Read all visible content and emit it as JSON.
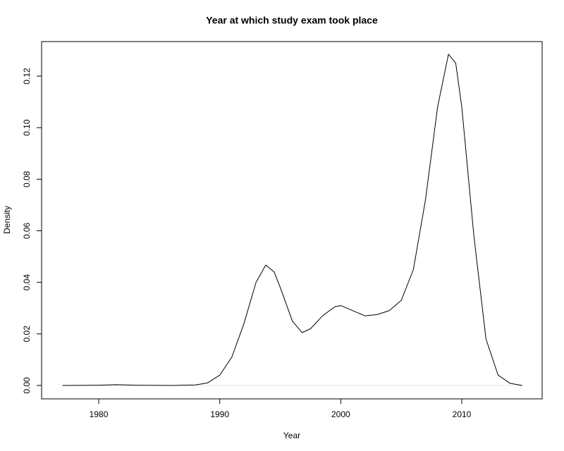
{
  "chart_data": {
    "type": "line",
    "title": "Year at which study exam took place",
    "x_label": "Year",
    "y_label": "Density",
    "x": [
      1977,
      1980,
      1981.5,
      1983,
      1986,
      1988,
      1989,
      1990,
      1991,
      1992,
      1993,
      1993.8,
      1994.5,
      1995,
      1996,
      1996.8,
      1997.5,
      1998.5,
      1999.5,
      2000,
      2001,
      2002,
      2003,
      2004,
      2005,
      2006,
      2007,
      2008,
      2008.9,
      2009.5,
      2010,
      2011,
      2012,
      2013,
      2014,
      2015
    ],
    "y": [
      0,
      0.0001,
      0.0003,
      0.0001,
      0,
      0.0002,
      0.001,
      0.004,
      0.011,
      0.024,
      0.04,
      0.0467,
      0.044,
      0.038,
      0.025,
      0.0205,
      0.022,
      0.027,
      0.0305,
      0.031,
      0.029,
      0.027,
      0.0275,
      0.029,
      0.033,
      0.045,
      0.072,
      0.108,
      0.1285,
      0.125,
      0.108,
      0.058,
      0.018,
      0.004,
      0.0008,
      0
    ],
    "color": "#000000",
    "xlim": [
      1975.28,
      2016.64
    ],
    "ylim": [
      -0.0052,
      0.1334
    ],
    "xticks": [
      1980,
      1990,
      2000,
      2010
    ],
    "yticks": [
      {
        "value": 0,
        "label": "0.00"
      },
      {
        "value": 0.02,
        "label": "0.02"
      },
      {
        "value": 0.04,
        "label": "0.04"
      },
      {
        "value": 0.06,
        "label": "0.06"
      },
      {
        "value": 0.08,
        "label": "0.08"
      },
      {
        "value": 0.1,
        "label": "0.10"
      },
      {
        "value": 0.12,
        "label": "0.12"
      }
    ],
    "zero_line": true
  }
}
